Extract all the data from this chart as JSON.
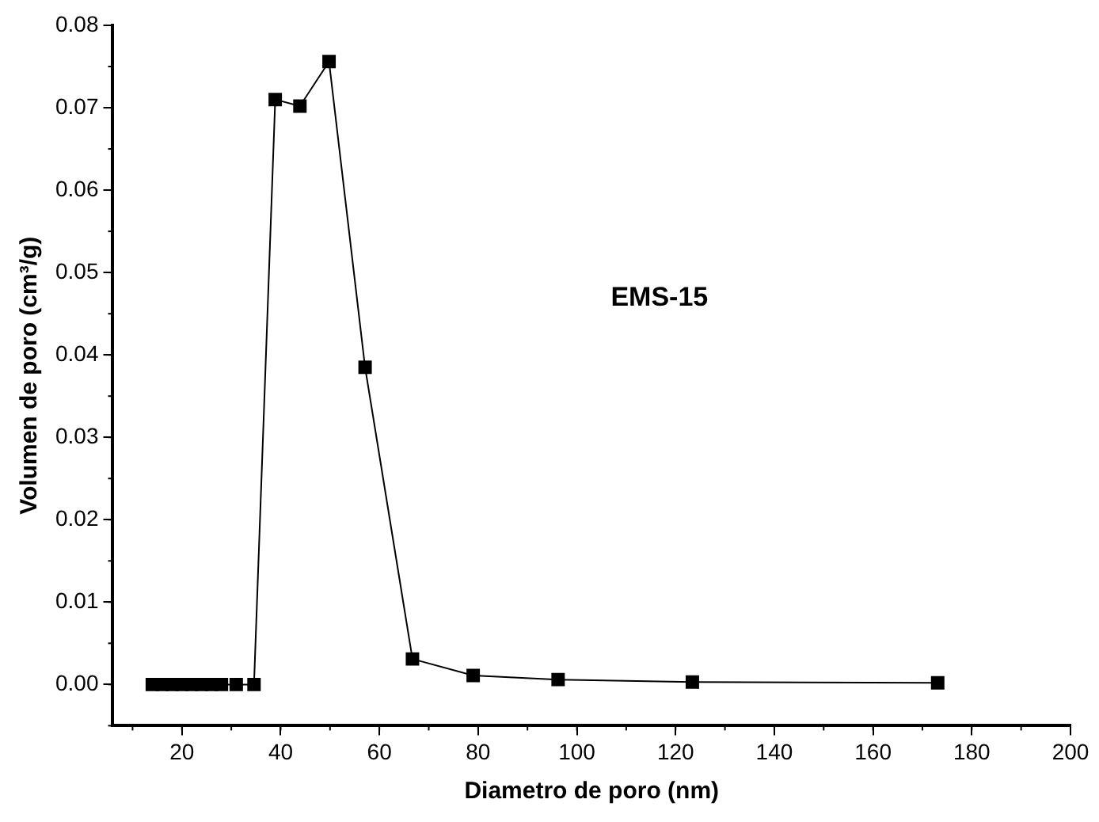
{
  "chart_data": {
    "type": "line",
    "xlabel": "Diametro de poro (nm)",
    "ylabel": "Volumen de poro (cm³/g)",
    "annotations": [
      "EMS-15"
    ],
    "x": [
      14,
      16,
      18,
      20,
      22,
      24,
      26,
      28,
      31,
      34.6,
      38.9,
      43.9,
      49.8,
      57.1,
      66.7,
      79,
      96.2,
      123.4,
      173.1
    ],
    "series": [
      {
        "color": "#000000",
        "values": [
          0,
          0,
          0,
          0,
          0,
          0,
          0,
          0,
          0,
          0,
          0.071,
          0.0702,
          0.0756,
          0.0385,
          0.0031,
          0.0011,
          0.0006,
          0.0003,
          0.0002
        ]
      }
    ],
    "xlim": [
      6,
      200
    ],
    "xticks": [
      20,
      40,
      60,
      80,
      100,
      120,
      140,
      160,
      180,
      200
    ],
    "ylim": [
      -0.005,
      0.08
    ],
    "yticks": [
      {
        "value": 0,
        "label": "0.00"
      },
      {
        "value": 0.01,
        "label": "0.01"
      },
      {
        "value": 0.02,
        "label": "0.02"
      },
      {
        "value": 0.03,
        "label": "0.03"
      },
      {
        "value": 0.04,
        "label": "0.04"
      },
      {
        "value": 0.05,
        "label": "0.05"
      },
      {
        "value": 0.06,
        "label": "0.06"
      },
      {
        "value": 0.07,
        "label": "0.07"
      },
      {
        "value": 0.08,
        "label": "0.08"
      }
    ],
    "grid": false,
    "legend": false,
    "marker": "square",
    "line_style": "solid"
  }
}
